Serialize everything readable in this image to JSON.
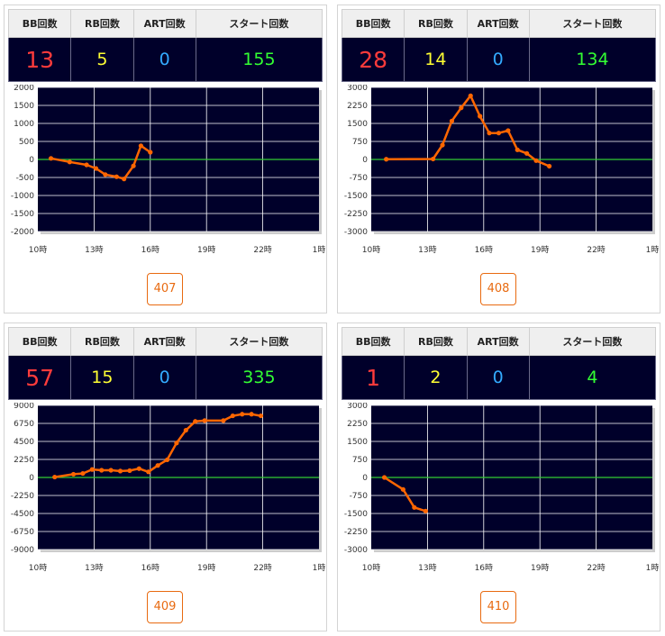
{
  "headers": [
    "BB回数",
    "RB回数",
    "ART回数",
    "スタート回数"
  ],
  "machines": [
    {
      "number": "407",
      "bb": "13",
      "rb": "5",
      "art": "0",
      "start": "155"
    },
    {
      "number": "408",
      "bb": "28",
      "rb": "14",
      "art": "0",
      "start": "134"
    },
    {
      "number": "409",
      "bb": "57",
      "rb": "15",
      "art": "0",
      "start": "335"
    },
    {
      "number": "410",
      "bb": "1",
      "rb": "2",
      "art": "0",
      "start": "4"
    }
  ],
  "colors": {
    "line": "#ff6600",
    "zero_line": "#33cc33",
    "plot_bg": "#00002a",
    "grid": "#ffffff"
  },
  "chart_data": [
    {
      "type": "line",
      "title": "",
      "xlabel": "",
      "ylabel": "",
      "x_ticks": [
        "10時",
        "13時",
        "16時",
        "19時",
        "22時",
        "1時"
      ],
      "xlim": [
        10,
        25
      ],
      "y_ticks": [
        2000,
        1500,
        1000,
        500,
        0,
        -500,
        -1000,
        -1500,
        -2000
      ],
      "ylim": [
        -2000,
        2000
      ],
      "grid": true,
      "series": [
        {
          "x": [
            10.7,
            11.7,
            12.6,
            13.1,
            13.6,
            14.2,
            14.6,
            15.1,
            15.5,
            16.0
          ],
          "y": [
            30,
            -70,
            -150,
            -250,
            -420,
            -480,
            -540,
            -180,
            380,
            200
          ]
        }
      ]
    },
    {
      "type": "line",
      "title": "",
      "xlabel": "",
      "ylabel": "",
      "x_ticks": [
        "10時",
        "13時",
        "16時",
        "19時",
        "22時",
        "1時"
      ],
      "xlim": [
        10,
        25
      ],
      "y_ticks": [
        3000,
        2250,
        1500,
        750,
        0,
        -750,
        -1500,
        -2250,
        -3000
      ],
      "ylim": [
        -3000,
        3000
      ],
      "grid": true,
      "series": [
        {
          "x": [
            10.8,
            13.3,
            13.8,
            14.3,
            14.8,
            15.3,
            15.8,
            16.3,
            16.8,
            17.3,
            17.8,
            18.3,
            18.8,
            19.5
          ],
          "y": [
            10,
            20,
            600,
            1600,
            2150,
            2650,
            1800,
            1100,
            1100,
            1200,
            400,
            250,
            -50,
            -280
          ]
        }
      ]
    },
    {
      "type": "line",
      "title": "",
      "xlabel": "",
      "ylabel": "",
      "x_ticks": [
        "10時",
        "13時",
        "16時",
        "19時",
        "22時",
        "1時"
      ],
      "xlim": [
        10,
        25
      ],
      "y_ticks": [
        9000,
        6750,
        4500,
        2250,
        0,
        -2250,
        -4500,
        -6750,
        -9000
      ],
      "ylim": [
        -9000,
        9000
      ],
      "grid": true,
      "series": [
        {
          "x": [
            10.9,
            11.9,
            12.4,
            12.9,
            13.4,
            13.9,
            14.4,
            14.9,
            15.4,
            15.9,
            16.4,
            16.9,
            17.4,
            17.9,
            18.4,
            18.9,
            19.9,
            20.4,
            20.9,
            21.4,
            21.9
          ],
          "y": [
            50,
            400,
            500,
            1000,
            900,
            900,
            800,
            850,
            1100,
            700,
            1500,
            2200,
            4300,
            5900,
            7000,
            7100,
            7100,
            7700,
            7900,
            7900,
            7700
          ]
        }
      ]
    },
    {
      "type": "line",
      "title": "",
      "xlabel": "",
      "ylabel": "",
      "x_ticks": [
        "10時",
        "13時",
        "16時",
        "19時",
        "22時",
        "1時"
      ],
      "xlim": [
        10,
        25
      ],
      "y_ticks": [
        3000,
        2250,
        1500,
        750,
        0,
        -750,
        -1500,
        -2250,
        -3000
      ],
      "ylim": [
        -3000,
        3000
      ],
      "grid": true,
      "series": [
        {
          "x": [
            10.7,
            11.7,
            12.3,
            12.9
          ],
          "y": [
            0,
            -500,
            -1250,
            -1400
          ]
        }
      ]
    }
  ]
}
